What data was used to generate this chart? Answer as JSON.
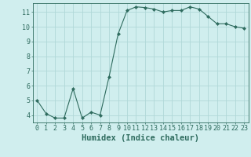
{
  "x": [
    0,
    1,
    2,
    3,
    4,
    5,
    6,
    7,
    8,
    9,
    10,
    11,
    12,
    13,
    14,
    15,
    16,
    17,
    18,
    19,
    20,
    21,
    22,
    23
  ],
  "y": [
    5.0,
    4.1,
    3.8,
    3.8,
    5.8,
    3.8,
    4.2,
    4.0,
    6.6,
    9.5,
    11.1,
    11.35,
    11.3,
    11.2,
    11.0,
    11.1,
    11.1,
    11.35,
    11.2,
    10.7,
    10.2,
    10.2,
    10.0,
    9.9
  ],
  "line_color": "#2e6b5e",
  "marker": "D",
  "marker_size": 2.2,
  "bg_color": "#d0eeee",
  "grid_color": "#b0d8d8",
  "xlabel": "Humidex (Indice chaleur)",
  "ylim": [
    3.5,
    11.6
  ],
  "xlim": [
    -0.5,
    23.5
  ],
  "yticks": [
    4,
    5,
    6,
    7,
    8,
    9,
    10,
    11
  ],
  "xticks": [
    0,
    1,
    2,
    3,
    4,
    5,
    6,
    7,
    8,
    9,
    10,
    11,
    12,
    13,
    14,
    15,
    16,
    17,
    18,
    19,
    20,
    21,
    22,
    23
  ],
  "tick_color": "#2e6b5e",
  "label_fontsize": 6.0,
  "xlabel_fontsize": 7.5
}
